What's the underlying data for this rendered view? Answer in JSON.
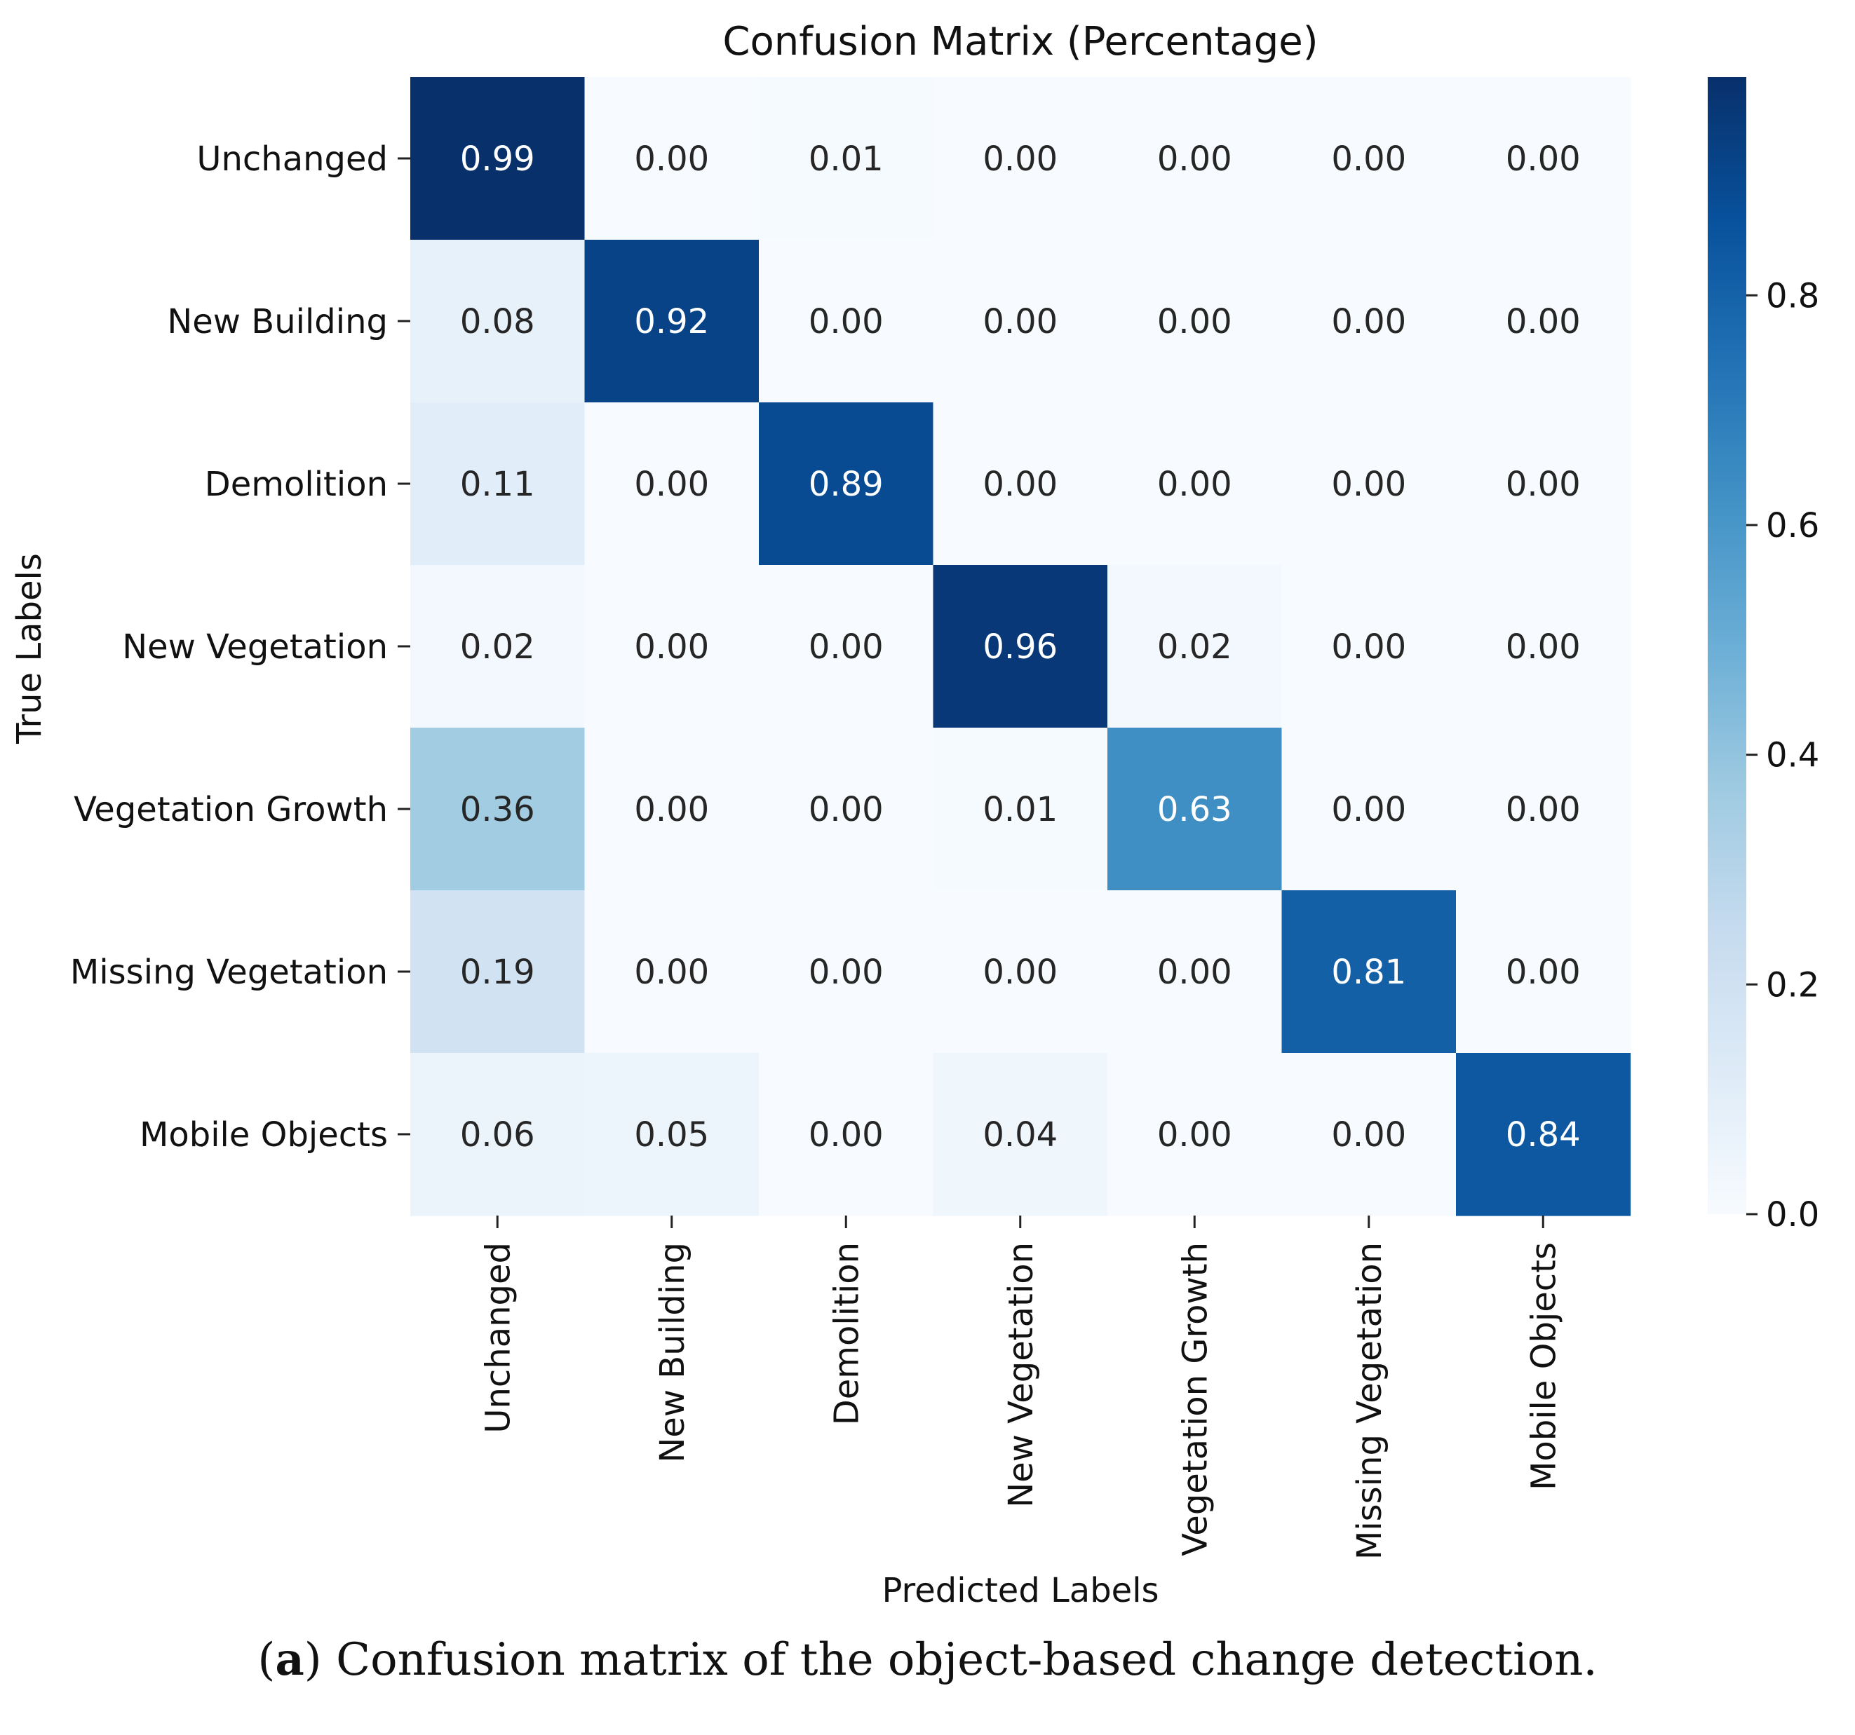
{
  "chart_data": {
    "type": "heatmap",
    "title": "Confusion Matrix (Percentage)",
    "xlabel": "Predicted Labels",
    "ylabel": "True Labels",
    "x_categories": [
      "Unchanged",
      "New Building",
      "Demolition",
      "New Vegetation",
      "Vegetation Growth",
      "Missing Vegetation",
      "Mobile Objects"
    ],
    "y_categories": [
      "Unchanged",
      "New Building",
      "Demolition",
      "New Vegetation",
      "Vegetation Growth",
      "Missing Vegetation",
      "Mobile Objects"
    ],
    "values": [
      [
        0.99,
        0.0,
        0.01,
        0.0,
        0.0,
        0.0,
        0.0
      ],
      [
        0.08,
        0.92,
        0.0,
        0.0,
        0.0,
        0.0,
        0.0
      ],
      [
        0.11,
        0.0,
        0.89,
        0.0,
        0.0,
        0.0,
        0.0
      ],
      [
        0.02,
        0.0,
        0.0,
        0.96,
        0.02,
        0.0,
        0.0
      ],
      [
        0.36,
        0.0,
        0.0,
        0.01,
        0.63,
        0.0,
        0.0
      ],
      [
        0.19,
        0.0,
        0.0,
        0.0,
        0.0,
        0.81,
        0.0
      ],
      [
        0.06,
        0.05,
        0.0,
        0.04,
        0.0,
        0.0,
        0.84
      ]
    ],
    "colormap": "Blues",
    "colorbar": {
      "range": [
        0.0,
        0.99
      ],
      "ticks": [
        "0.0",
        "0.2",
        "0.4",
        "0.6",
        "0.8"
      ]
    }
  },
  "caption": {
    "label": "a",
    "text": "Confusion matrix of the object-based change detection."
  }
}
